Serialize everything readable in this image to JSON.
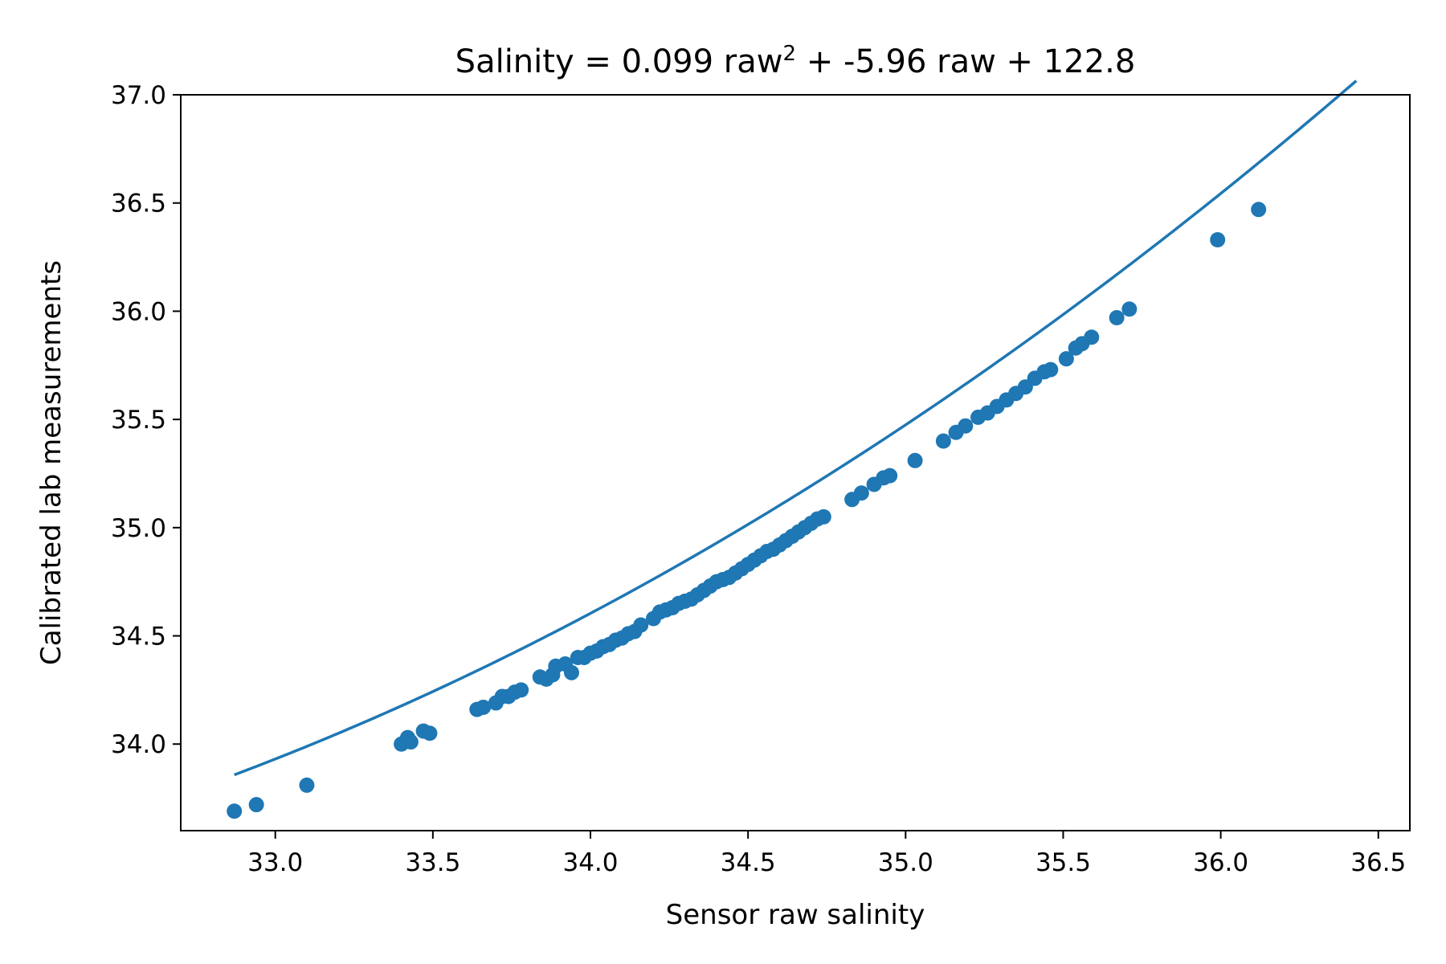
{
  "chart_data": {
    "type": "scatter",
    "title": "Salinity = 0.099 raw",
    "title_sup": "2",
    "title_rest": " + -5.96 raw + 122.8",
    "xlabel": "Sensor raw salinity",
    "ylabel": "Calibrated lab measurements",
    "xlim": [
      32.7,
      36.6
    ],
    "ylim": [
      33.6,
      37.0
    ],
    "xticks": [
      33.0,
      33.5,
      34.0,
      34.5,
      35.0,
      35.5,
      36.0,
      36.5
    ],
    "xtick_labels": [
      "33.0",
      "33.5",
      "34.0",
      "34.5",
      "35.0",
      "35.5",
      "36.0",
      "36.5"
    ],
    "yticks": [
      34.0,
      34.5,
      35.0,
      35.5,
      36.0,
      36.5,
      37.0
    ],
    "ytick_labels": [
      "34.0",
      "34.5",
      "35.0",
      "35.5",
      "36.0",
      "36.5",
      "37.0"
    ],
    "grid": false,
    "color": "#1f77b4",
    "fit": {
      "a": 0.099,
      "b": -5.96,
      "c": 122.8,
      "x_range": [
        32.87,
        36.43
      ]
    },
    "points": [
      [
        32.87,
        33.69
      ],
      [
        32.94,
        33.72
      ],
      [
        33.1,
        33.81
      ],
      [
        33.4,
        34.0
      ],
      [
        33.42,
        34.03
      ],
      [
        33.43,
        34.01
      ],
      [
        33.47,
        34.06
      ],
      [
        33.49,
        34.05
      ],
      [
        33.64,
        34.16
      ],
      [
        33.66,
        34.17
      ],
      [
        33.7,
        34.19
      ],
      [
        33.72,
        34.22
      ],
      [
        33.74,
        34.22
      ],
      [
        33.76,
        34.24
      ],
      [
        33.78,
        34.25
      ],
      [
        33.84,
        34.31
      ],
      [
        33.86,
        34.3
      ],
      [
        33.88,
        34.32
      ],
      [
        33.89,
        34.36
      ],
      [
        33.92,
        34.37
      ],
      [
        33.94,
        34.33
      ],
      [
        33.96,
        34.4
      ],
      [
        33.98,
        34.4
      ],
      [
        34.0,
        34.42
      ],
      [
        34.02,
        34.43
      ],
      [
        34.04,
        34.45
      ],
      [
        34.06,
        34.46
      ],
      [
        34.08,
        34.48
      ],
      [
        34.1,
        34.49
      ],
      [
        34.12,
        34.51
      ],
      [
        34.14,
        34.52
      ],
      [
        34.16,
        34.55
      ],
      [
        34.2,
        34.58
      ],
      [
        34.22,
        34.61
      ],
      [
        34.24,
        34.62
      ],
      [
        34.26,
        34.63
      ],
      [
        34.28,
        34.65
      ],
      [
        34.3,
        34.66
      ],
      [
        34.32,
        34.67
      ],
      [
        34.34,
        34.69
      ],
      [
        34.36,
        34.71
      ],
      [
        34.38,
        34.73
      ],
      [
        34.4,
        34.75
      ],
      [
        34.42,
        34.76
      ],
      [
        34.44,
        34.77
      ],
      [
        34.46,
        34.79
      ],
      [
        34.48,
        34.81
      ],
      [
        34.5,
        34.83
      ],
      [
        34.52,
        34.85
      ],
      [
        34.54,
        34.87
      ],
      [
        34.56,
        34.89
      ],
      [
        34.58,
        34.9
      ],
      [
        34.6,
        34.92
      ],
      [
        34.62,
        34.94
      ],
      [
        34.64,
        34.96
      ],
      [
        34.66,
        34.98
      ],
      [
        34.68,
        35.0
      ],
      [
        34.7,
        35.02
      ],
      [
        34.72,
        35.04
      ],
      [
        34.74,
        35.05
      ],
      [
        34.83,
        35.13
      ],
      [
        34.86,
        35.16
      ],
      [
        34.9,
        35.2
      ],
      [
        34.93,
        35.23
      ],
      [
        34.95,
        35.24
      ],
      [
        35.03,
        35.31
      ],
      [
        35.12,
        35.4
      ],
      [
        35.16,
        35.44
      ],
      [
        35.19,
        35.47
      ],
      [
        35.23,
        35.51
      ],
      [
        35.26,
        35.53
      ],
      [
        35.29,
        35.56
      ],
      [
        35.32,
        35.59
      ],
      [
        35.35,
        35.62
      ],
      [
        35.38,
        35.65
      ],
      [
        35.41,
        35.69
      ],
      [
        35.44,
        35.72
      ],
      [
        35.46,
        35.73
      ],
      [
        35.51,
        35.78
      ],
      [
        35.54,
        35.83
      ],
      [
        35.56,
        35.85
      ],
      [
        35.59,
        35.88
      ],
      [
        35.67,
        35.97
      ],
      [
        35.71,
        36.01
      ],
      [
        35.99,
        36.33
      ],
      [
        36.12,
        36.47
      ]
    ]
  }
}
